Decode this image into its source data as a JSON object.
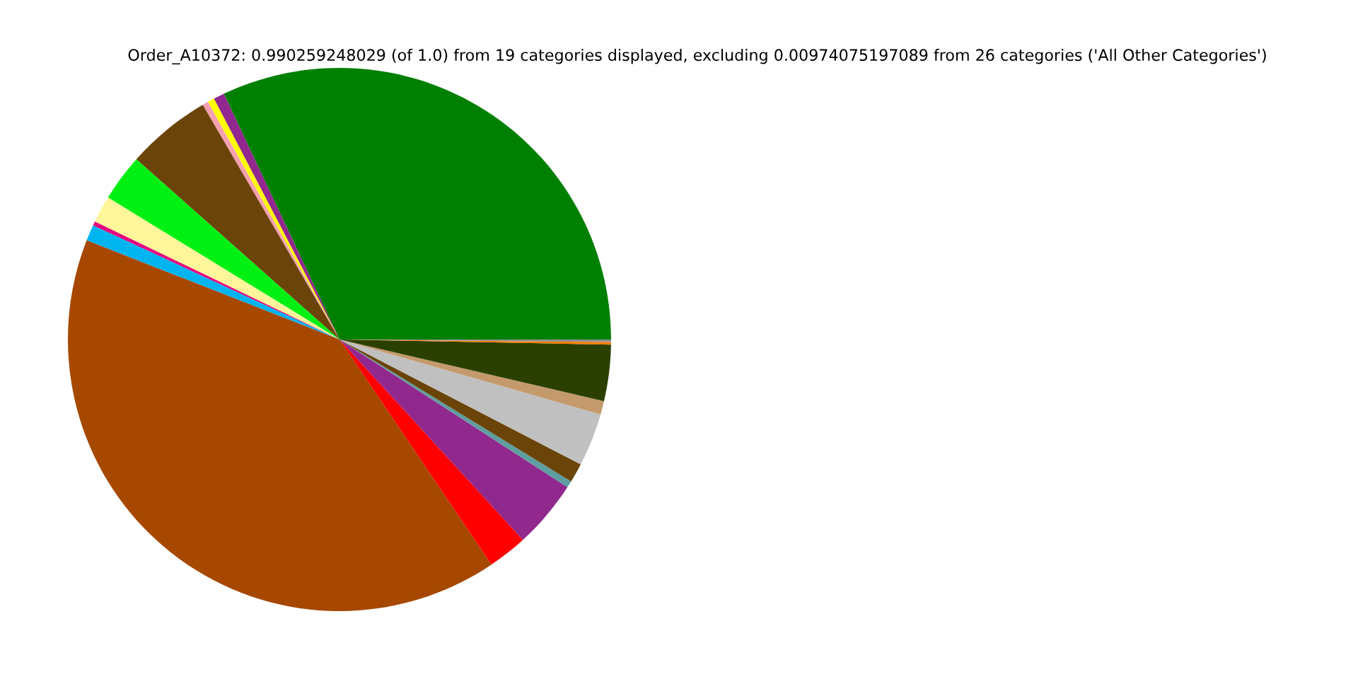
{
  "chart_data": {
    "type": "pie",
    "title": "Order_A10372: 0.990259248029 (of 1.0) from 19 categories displayed, excluding 0.00974075197089 from 26 categories ('All Other Categories')",
    "categories": [
      null,
      null,
      null,
      null,
      null,
      null,
      null,
      null,
      null,
      null,
      null,
      null,
      null,
      null,
      null,
      null,
      null,
      null,
      null
    ],
    "values": [
      32.0,
      0.65,
      0.4,
      0.35,
      5.05,
      2.8,
      1.6,
      0.25,
      0.95,
      40.4,
      2.35,
      4.05,
      0.4,
      1.15,
      3.15,
      0.8,
      3.35,
      0.15,
      0.15
    ],
    "colors": [
      "#008000",
      "#92278f",
      "#ffff00",
      "#f4a0b0",
      "#6b4409",
      "#00f014",
      "#fff59a",
      "#e6007e",
      "#00b4f0",
      "#a64800",
      "#ff0000",
      "#91288e",
      "#5f9ea0",
      "#6b4409",
      "#c0c0c0",
      "#c49a6c",
      "#2b4000",
      "#ff7f00",
      "#909090"
    ],
    "legend": false
  }
}
